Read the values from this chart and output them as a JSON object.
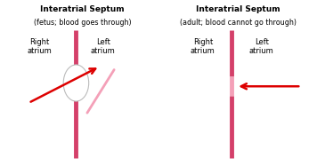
{
  "bg_color": "#ffffff",
  "title1": "Interatrial Septum",
  "subtitle1": "(fetus; blood goes through)",
  "title2": "Interatrial Septum",
  "subtitle2": "(adult; blood cannot go through)",
  "label_right": "Right\natrium",
  "label_left": "Left\natrium",
  "septum_color": "#d4406a",
  "light_pink": "#f4a0b8",
  "arrow_color": "#dd0000",
  "title_fontsize": 6.5,
  "subtitle_fontsize": 5.8,
  "label_fontsize": 6.0
}
